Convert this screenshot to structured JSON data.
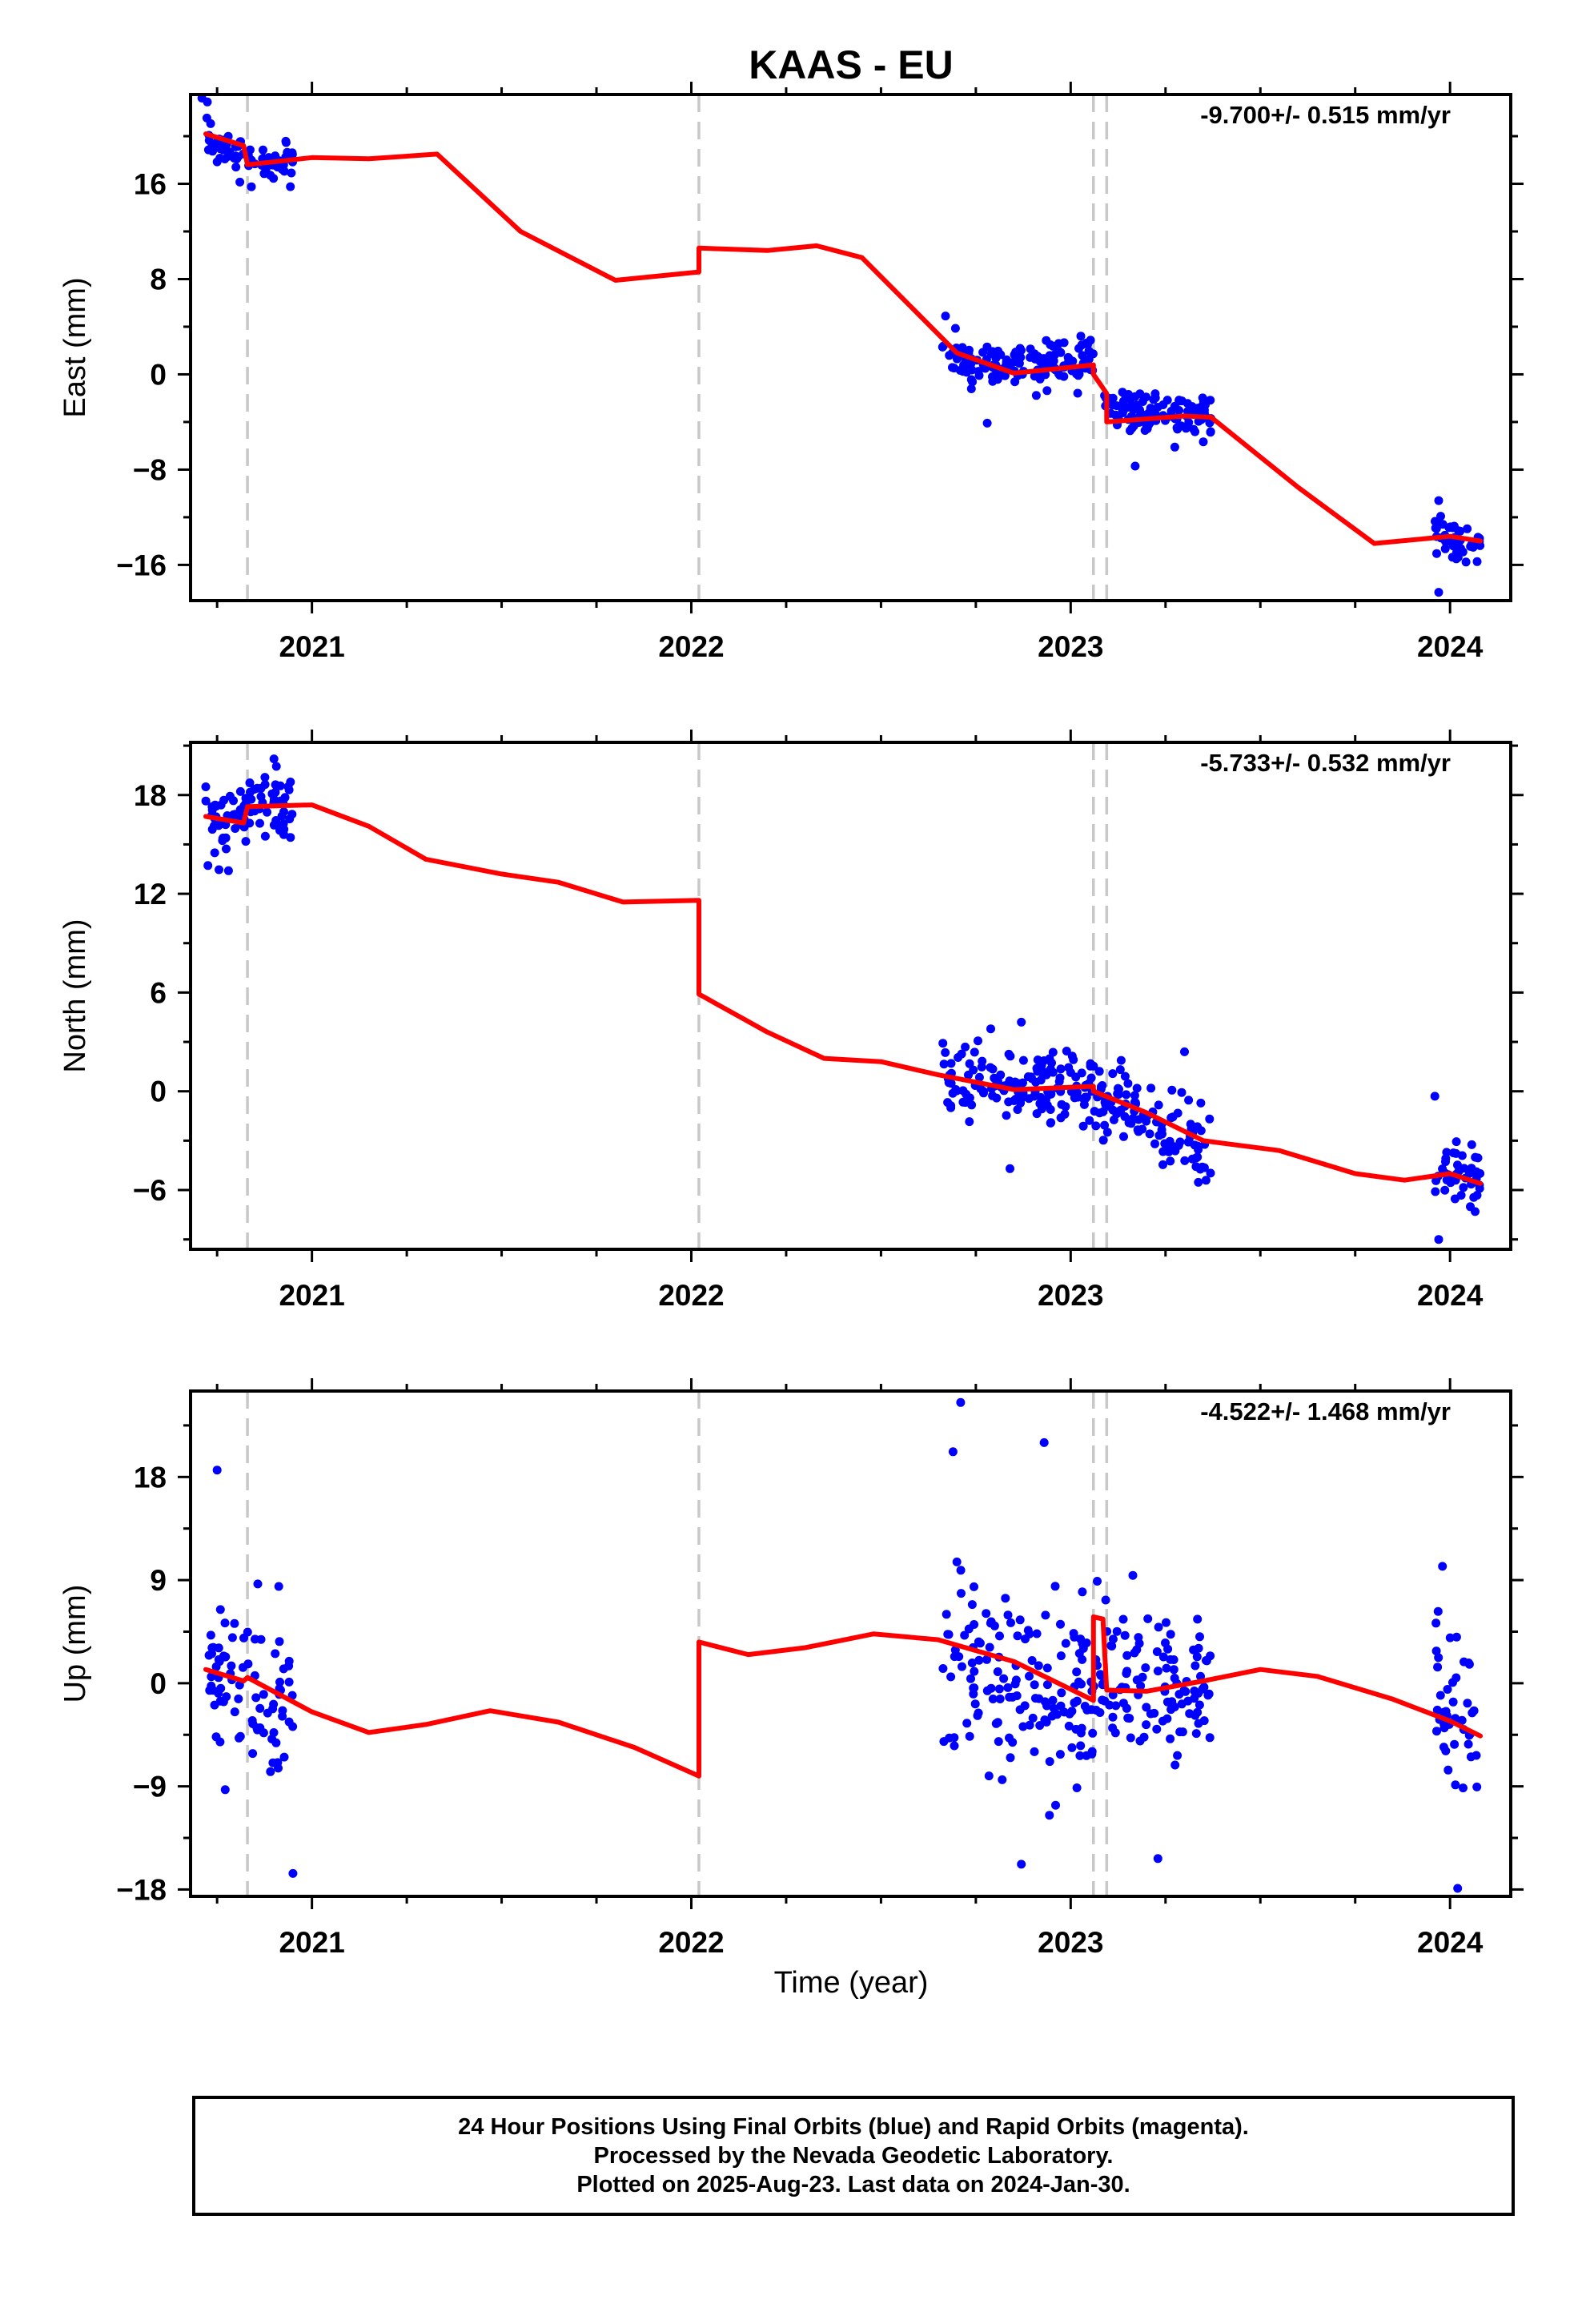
{
  "title": "KAAS - EU",
  "xlabel": "Time (year)",
  "colors": {
    "points": "#0000ff",
    "model": "#ff0000",
    "steps": "#c8c8c8",
    "axis": "#000000"
  },
  "footer": {
    "line1": "24 Hour Positions Using Final Orbits (blue) and Rapid Orbits (magenta).",
    "line2": "Processed by the Nevada Geodetic Laboratory.",
    "line3": "Plotted on 2025-Aug-23. Last data on 2024-Jan-30."
  },
  "chart_data": [
    {
      "type": "scatter",
      "ylabel": "East (mm)",
      "annotation": "-9.700+/- 0.515 mm/yr",
      "xlim": [
        2020.68,
        2024.16
      ],
      "ylim": [
        -19,
        23.5
      ],
      "xticks": [
        2021,
        2022,
        2023,
        2024
      ],
      "yticks": [
        -16,
        -8,
        0,
        8,
        16
      ],
      "ytick_labels": [
        "−16",
        "−8",
        "0",
        "8",
        "16"
      ],
      "step_epochs": [
        2020.83,
        2022.02,
        2023.06,
        2023.095
      ],
      "series": [
        {
          "role": "observations",
          "color": "#0000ff",
          "clusters": [
            {
              "x_start": 2020.72,
              "x_end": 2020.95,
              "center": [
                20,
                18.5,
                17.8,
                17.6,
                17.5
              ],
              "spread": 1.3
            },
            {
              "x_start": 2022.66,
              "x_end": 2023.06,
              "center": [
                1.8,
                0.8,
                0.4,
                0.8,
                1.0
              ],
              "spread": 1.4
            },
            {
              "x_start": 2023.08,
              "x_end": 2023.37,
              "center": [
                -2.0,
                -3.2,
                -3.6,
                -3.6
              ],
              "spread": 1.3
            },
            {
              "x_start": 2023.96,
              "x_end": 2024.08,
              "center": [
                -13.6,
                -13.8,
                -14.2
              ],
              "spread": 1.2
            }
          ],
          "outliers": [
            [
              2020.71,
              23.2
            ],
            [
              2022.67,
              4.9
            ],
            [
              2022.78,
              -4.1
            ],
            [
              2023.17,
              -7.7
            ],
            [
              2023.97,
              -18.3
            ],
            [
              2023.97,
              -10.6
            ]
          ]
        },
        {
          "role": "model",
          "color": "#ff0000",
          "points": [
            [
              2020.72,
              20.2
            ],
            [
              2020.82,
              19.2
            ],
            [
              2020.83,
              17.6
            ],
            [
              2021.0,
              18.2
            ],
            [
              2021.15,
              18.1
            ],
            [
              2021.33,
              18.5
            ],
            [
              2021.55,
              12.0
            ],
            [
              2021.8,
              7.9
            ],
            [
              2022.02,
              8.6
            ],
            [
              2022.02,
              10.6
            ],
            [
              2022.2,
              10.4
            ],
            [
              2022.33,
              10.8
            ],
            [
              2022.45,
              9.8
            ],
            [
              2022.7,
              1.8
            ],
            [
              2022.85,
              0.1
            ],
            [
              2023.06,
              0.8
            ],
            [
              2023.06,
              0.0
            ],
            [
              2023.095,
              -1.6
            ],
            [
              2023.095,
              -4.0
            ],
            [
              2023.3,
              -3.5
            ],
            [
              2023.37,
              -3.6
            ],
            [
              2023.6,
              -9.5
            ],
            [
              2023.8,
              -14.2
            ],
            [
              2024.0,
              -13.6
            ],
            [
              2024.08,
              -14.0
            ]
          ]
        }
      ]
    },
    {
      "type": "scatter",
      "ylabel": "North (mm)",
      "annotation": "-5.733+/- 0.532 mm/yr",
      "xlim": [
        2020.68,
        2024.16
      ],
      "ylim": [
        -9.6,
        21.2
      ],
      "xticks": [
        2021,
        2022,
        2023,
        2024
      ],
      "yticks": [
        -6,
        0,
        6,
        12,
        18
      ],
      "ytick_labels": [
        "−6",
        "0",
        "6",
        "12",
        "18"
      ],
      "step_epochs": [
        2020.83,
        2022.02,
        2023.06,
        2023.095
      ],
      "series": [
        {
          "role": "observations",
          "color": "#0000ff",
          "clusters": [
            {
              "x_start": 2020.72,
              "x_end": 2020.95,
              "center": [
                16.4,
                16.0,
                17.2,
                17.6,
                17.3
              ],
              "spread": 1.3
            },
            {
              "x_start": 2022.66,
              "x_end": 2023.06,
              "center": [
                0.6,
                0.8,
                0.2,
                0.3,
                0.2
              ],
              "spread": 1.6
            },
            {
              "x_start": 2023.06,
              "x_end": 2023.37,
              "center": [
                -0.2,
                -1.2,
                -2.6,
                -3.5
              ],
              "spread": 1.4
            },
            {
              "x_start": 2023.96,
              "x_end": 2024.08,
              "center": [
                -5.0,
                -5.2,
                -5.6
              ],
              "spread": 1.1
            }
          ],
          "outliers": [
            [
              2020.72,
              18.5
            ],
            [
              2020.9,
              20.2
            ],
            [
              2020.78,
              13.4
            ],
            [
              2022.87,
              4.2
            ],
            [
              2023.3,
              2.4
            ],
            [
              2023.96,
              -0.3
            ],
            [
              2023.97,
              -9.0
            ],
            [
              2022.84,
              -4.7
            ]
          ]
        },
        {
          "role": "model",
          "color": "#ff0000",
          "points": [
            [
              2020.72,
              16.7
            ],
            [
              2020.82,
              16.3
            ],
            [
              2020.83,
              17.3
            ],
            [
              2021.0,
              17.4
            ],
            [
              2021.15,
              16.1
            ],
            [
              2021.3,
              14.1
            ],
            [
              2021.5,
              13.2
            ],
            [
              2021.65,
              12.7
            ],
            [
              2021.82,
              11.5
            ],
            [
              2022.02,
              11.6
            ],
            [
              2022.02,
              5.9
            ],
            [
              2022.2,
              3.6
            ],
            [
              2022.35,
              2.0
            ],
            [
              2022.5,
              1.8
            ],
            [
              2022.65,
              1.0
            ],
            [
              2022.85,
              0.1
            ],
            [
              2023.06,
              0.3
            ],
            [
              2023.06,
              0.0
            ],
            [
              2023.2,
              -1.3
            ],
            [
              2023.35,
              -3.0
            ],
            [
              2023.55,
              -3.6
            ],
            [
              2023.75,
              -5.0
            ],
            [
              2023.88,
              -5.4
            ],
            [
              2024.0,
              -5.0
            ],
            [
              2024.08,
              -5.6
            ]
          ]
        }
      ]
    },
    {
      "type": "scatter",
      "ylabel": "Up (mm)",
      "annotation": "-4.522+/- 1.468 mm/yr",
      "xlim": [
        2020.68,
        2024.16
      ],
      "ylim": [
        -18.6,
        25.5
      ],
      "xticks": [
        2021,
        2022,
        2023,
        2024
      ],
      "yticks": [
        -18,
        -9,
        0,
        9,
        18
      ],
      "ytick_labels": [
        "−18",
        "−9",
        "0",
        "9",
        "18"
      ],
      "step_epochs": [
        2020.83,
        2022.02,
        2023.06,
        2023.095
      ],
      "series": [
        {
          "role": "observations",
          "color": "#0000ff",
          "clusters": [
            {
              "x_start": 2020.72,
              "x_end": 2020.95,
              "center": [
                0.5,
                1.0,
                -1.0,
                -1.5,
                -1.0
              ],
              "spread": 4.5
            },
            {
              "x_start": 2022.66,
              "x_end": 2023.06,
              "center": [
                2.0,
                1.0,
                0.0,
                -0.5,
                -1.0
              ],
              "spread": 6.0
            },
            {
              "x_start": 2023.06,
              "x_end": 2023.37,
              "center": [
                1.0,
                0.0,
                -1.0,
                0.5
              ],
              "spread": 4.5
            },
            {
              "x_start": 2023.96,
              "x_end": 2024.08,
              "center": [
                -2.0,
                -3.0,
                -4.0
              ],
              "spread": 4.5
            }
          ],
          "outliers": [
            [
              2020.75,
              18.6
            ],
            [
              2020.95,
              -16.6
            ],
            [
              2022.71,
              24.5
            ],
            [
              2022.69,
              20.2
            ],
            [
              2022.93,
              21.0
            ],
            [
              2022.87,
              -15.8
            ],
            [
              2023.23,
              -15.3
            ],
            [
              2024.02,
              -17.9
            ],
            [
              2023.98,
              10.2
            ],
            [
              2023.07,
              8.9
            ]
          ]
        },
        {
          "role": "model",
          "color": "#ff0000",
          "points": [
            [
              2020.72,
              1.2
            ],
            [
              2020.82,
              0.2
            ],
            [
              2020.83,
              0.5
            ],
            [
              2021.0,
              -2.5
            ],
            [
              2021.15,
              -4.3
            ],
            [
              2021.3,
              -3.6
            ],
            [
              2021.47,
              -2.4
            ],
            [
              2021.65,
              -3.4
            ],
            [
              2021.85,
              -5.6
            ],
            [
              2022.02,
              -8.1
            ],
            [
              2022.02,
              3.6
            ],
            [
              2022.15,
              2.5
            ],
            [
              2022.3,
              3.1
            ],
            [
              2022.48,
              4.3
            ],
            [
              2022.65,
              3.8
            ],
            [
              2022.85,
              1.9
            ],
            [
              2023.06,
              -1.5
            ],
            [
              2023.06,
              5.8
            ],
            [
              2023.085,
              5.6
            ],
            [
              2023.095,
              -0.6
            ],
            [
              2023.2,
              -0.7
            ],
            [
              2023.35,
              0.2
            ],
            [
              2023.5,
              1.2
            ],
            [
              2023.65,
              0.6
            ],
            [
              2023.85,
              -1.4
            ],
            [
              2024.0,
              -3.3
            ],
            [
              2024.08,
              -4.6
            ]
          ]
        }
      ]
    }
  ]
}
